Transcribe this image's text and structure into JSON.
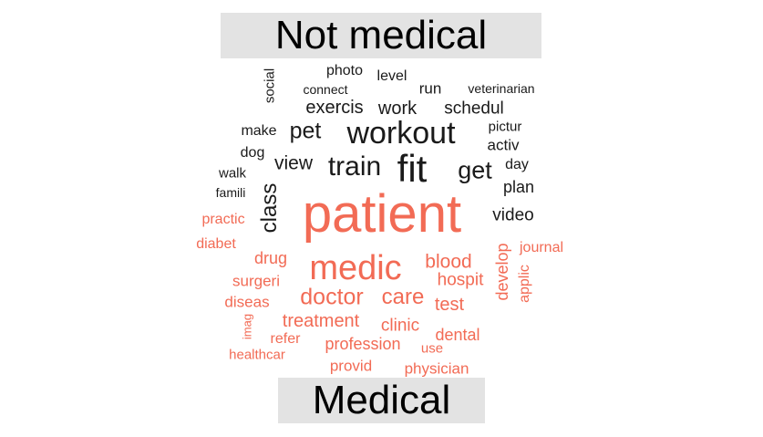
{
  "chart_data": {
    "type": "wordcloud",
    "groups": [
      {
        "name": "Not medical",
        "color": "#1a1a1a"
      },
      {
        "name": "Medical",
        "color": "#f26b55"
      }
    ],
    "words": [
      {
        "text": "social",
        "group": "Not medical",
        "size": 15,
        "rotated": true
      },
      {
        "text": "photo",
        "group": "Not medical",
        "size": 16
      },
      {
        "text": "level",
        "group": "Not medical",
        "size": 16
      },
      {
        "text": "connect",
        "group": "Not medical",
        "size": 14
      },
      {
        "text": "run",
        "group": "Not medical",
        "size": 17
      },
      {
        "text": "veterinarian",
        "group": "Not medical",
        "size": 14
      },
      {
        "text": "exercis",
        "group": "Not medical",
        "size": 20
      },
      {
        "text": "work",
        "group": "Not medical",
        "size": 20
      },
      {
        "text": "schedul",
        "group": "Not medical",
        "size": 19
      },
      {
        "text": "make",
        "group": "Not medical",
        "size": 16
      },
      {
        "text": "pet",
        "group": "Not medical",
        "size": 25
      },
      {
        "text": "workout",
        "group": "Not medical",
        "size": 34
      },
      {
        "text": "pictur",
        "group": "Not medical",
        "size": 15
      },
      {
        "text": "dog",
        "group": "Not medical",
        "size": 16
      },
      {
        "text": "activ",
        "group": "Not medical",
        "size": 17
      },
      {
        "text": "view",
        "group": "Not medical",
        "size": 21
      },
      {
        "text": "train",
        "group": "Not medical",
        "size": 30
      },
      {
        "text": "fit",
        "group": "Not medical",
        "size": 42
      },
      {
        "text": "get",
        "group": "Not medical",
        "size": 27
      },
      {
        "text": "day",
        "group": "Not medical",
        "size": 16
      },
      {
        "text": "walk",
        "group": "Not medical",
        "size": 15
      },
      {
        "text": "plan",
        "group": "Not medical",
        "size": 18
      },
      {
        "text": "famili",
        "group": "Not medical",
        "size": 14
      },
      {
        "text": "class",
        "group": "Not medical",
        "size": 24,
        "rotated": true
      },
      {
        "text": "video",
        "group": "Not medical",
        "size": 19
      },
      {
        "text": "patient",
        "group": "Medical",
        "size": 58
      },
      {
        "text": "practic",
        "group": "Medical",
        "size": 16
      },
      {
        "text": "diabet",
        "group": "Medical",
        "size": 16
      },
      {
        "text": "develop",
        "group": "Medical",
        "size": 18,
        "rotated": true
      },
      {
        "text": "journal",
        "group": "Medical",
        "size": 16
      },
      {
        "text": "drug",
        "group": "Medical",
        "size": 18
      },
      {
        "text": "medic",
        "group": "Medical",
        "size": 38
      },
      {
        "text": "blood",
        "group": "Medical",
        "size": 21
      },
      {
        "text": "applic",
        "group": "Medical",
        "size": 16,
        "rotated": true
      },
      {
        "text": "surgeri",
        "group": "Medical",
        "size": 17
      },
      {
        "text": "hospit",
        "group": "Medical",
        "size": 19
      },
      {
        "text": "diseas",
        "group": "Medical",
        "size": 17
      },
      {
        "text": "doctor",
        "group": "Medical",
        "size": 25
      },
      {
        "text": "care",
        "group": "Medical",
        "size": 24
      },
      {
        "text": "test",
        "group": "Medical",
        "size": 20
      },
      {
        "text": "imag",
        "group": "Medical",
        "size": 13,
        "rotated": true
      },
      {
        "text": "treatment",
        "group": "Medical",
        "size": 20
      },
      {
        "text": "clinic",
        "group": "Medical",
        "size": 19
      },
      {
        "text": "refer",
        "group": "Medical",
        "size": 16
      },
      {
        "text": "dental",
        "group": "Medical",
        "size": 18
      },
      {
        "text": "profession",
        "group": "Medical",
        "size": 18
      },
      {
        "text": "use",
        "group": "Medical",
        "size": 15
      },
      {
        "text": "healthcar",
        "group": "Medical",
        "size": 15
      },
      {
        "text": "provid",
        "group": "Medical",
        "size": 17
      },
      {
        "text": "physician",
        "group": "Medical",
        "size": 17
      }
    ]
  }
}
